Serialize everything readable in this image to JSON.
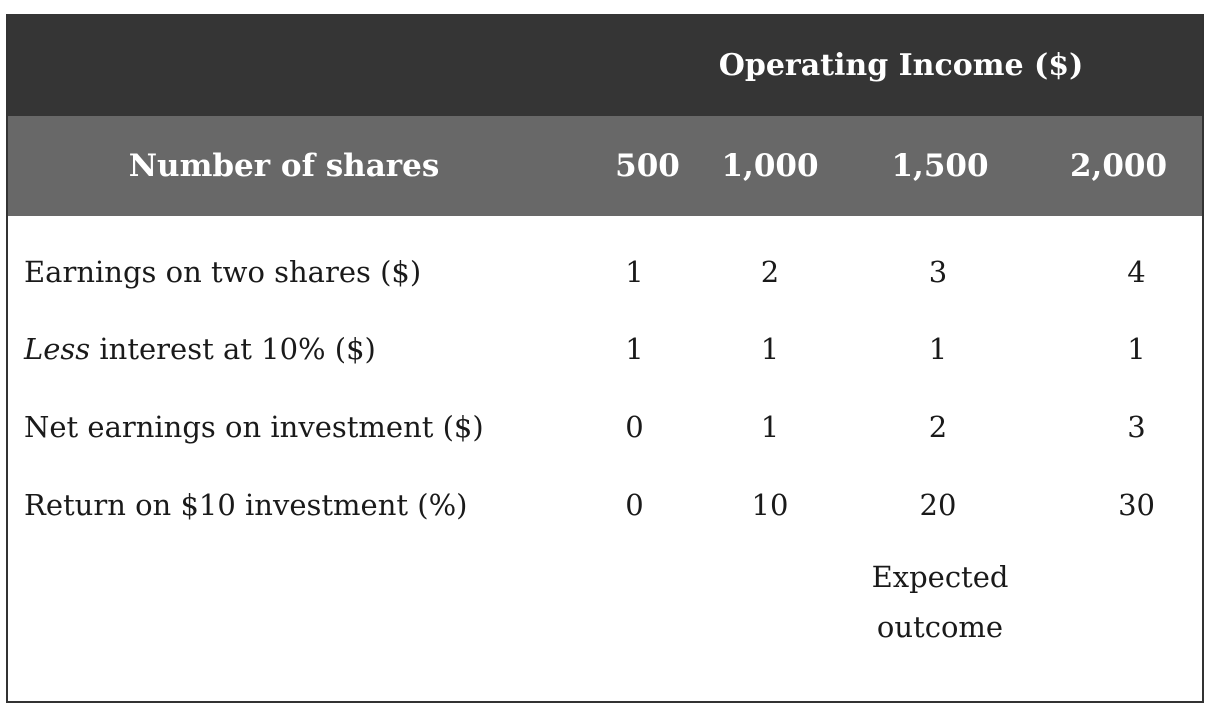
{
  "table": {
    "group_header": "Operating Income ($)",
    "row_header_label": "Number of shares",
    "columns": [
      "500",
      "1,000",
      "1,500",
      "2,000"
    ],
    "rows": [
      {
        "label": "Earnings on two shares ($)",
        "values": [
          "1",
          "2",
          "3",
          "4"
        ]
      },
      {
        "label_italic": "Less",
        "label_rest": " interest at 10% ($)",
        "values": [
          "1",
          "1",
          "1",
          "1"
        ]
      },
      {
        "label": "Net earnings on investment ($)",
        "values": [
          "0",
          "1",
          "2",
          "3"
        ]
      },
      {
        "label": "Return on $10 investment (%)",
        "values": [
          "0",
          "10",
          "20",
          "30"
        ]
      }
    ],
    "note_line1": "Expected",
    "note_line2": "outcome"
  },
  "colors": {
    "header_dark": "#353535",
    "header_mid": "#686868",
    "header_text": "#ffffff",
    "body_text": "#1a1a1a"
  }
}
